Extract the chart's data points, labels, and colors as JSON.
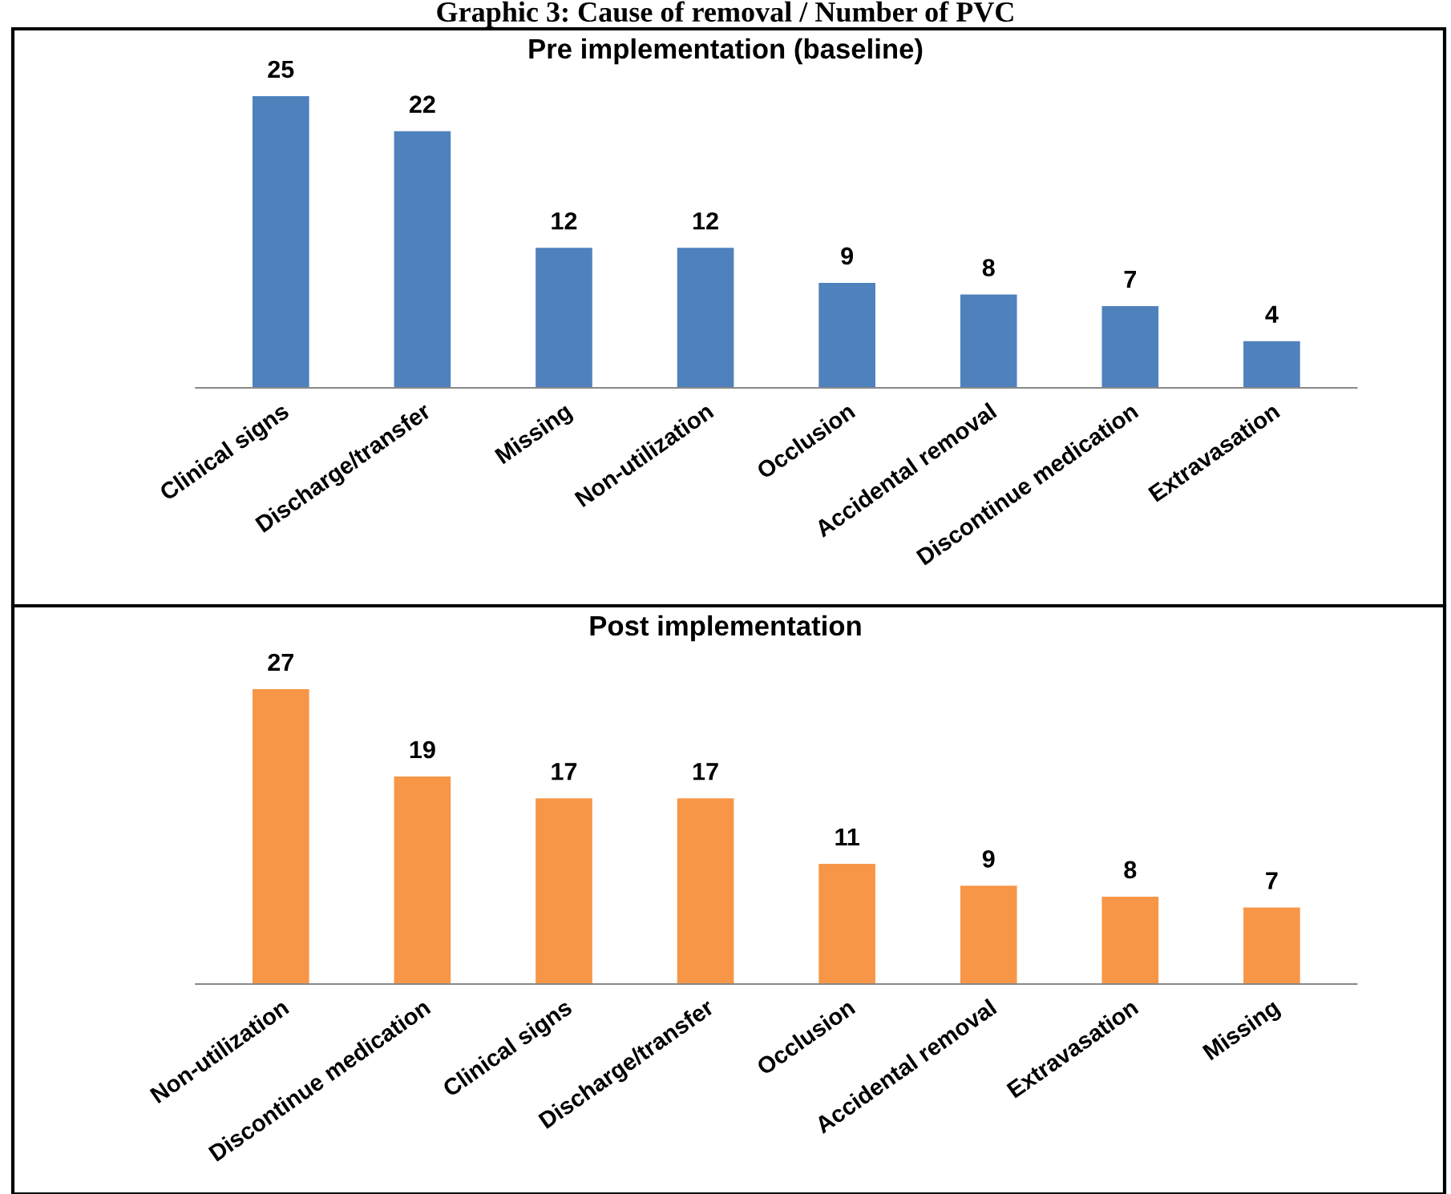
{
  "chart_data": [
    {
      "type": "bar",
      "title": "Pre implementation (baseline)",
      "annotations": [
        "Graphic 3: Cause of removal / Number of PVC"
      ],
      "categories": [
        "Clinical signs",
        "Discharge/transfer",
        "Missing",
        "Non-utilization",
        "Occlusion",
        "Accidental removal",
        "Discontinue medication",
        "Extravasation"
      ],
      "values": [
        25,
        22,
        12,
        12,
        9,
        8,
        7,
        4
      ],
      "color": "#4f81bd",
      "data_labels": true,
      "tick_labels": "x"
    },
    {
      "type": "bar",
      "title": "Post implementation",
      "categories": [
        "Non-utilization",
        "Discontinue medication",
        "Clinical signs",
        "Discharge/transfer",
        "Occlusion",
        "Accidental removal",
        "Extravasation",
        "Missing"
      ],
      "values": [
        27,
        19,
        17,
        17,
        11,
        9,
        8,
        7
      ],
      "color": "#f79646",
      "data_labels": true,
      "tick_labels": "x"
    }
  ]
}
